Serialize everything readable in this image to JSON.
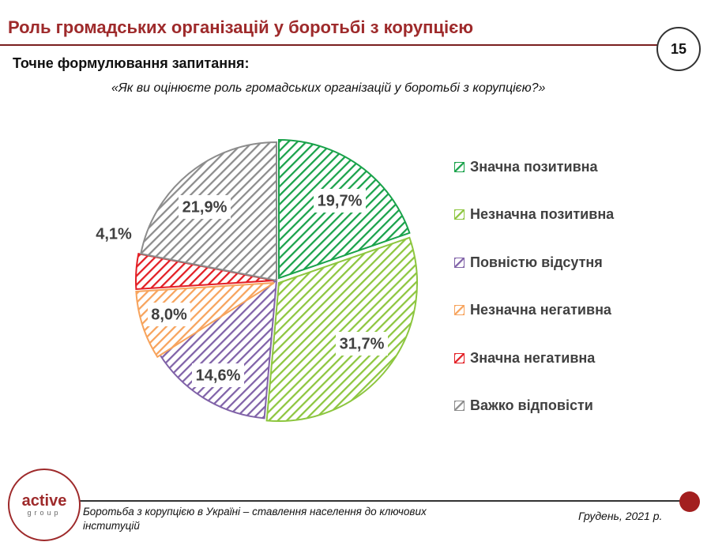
{
  "header": {
    "title": "Роль громадських організацій у боротьбі з корупцією",
    "page_number": "15"
  },
  "subtitle": "Точне формулювання запитання:",
  "question": "«Як ви оцінюєте роль громадських організацій у боротьбі з корупцією?»",
  "chart_data": {
    "type": "pie",
    "title": "",
    "categories": [
      "Значна позитивна",
      "Незначна позитивна",
      "Повністю відсутня",
      "Незначна негативна",
      "Значна негативна",
      "Важко відповісти"
    ],
    "values": [
      19.7,
      31.7,
      14.6,
      8.0,
      4.1,
      21.9
    ],
    "labels": [
      "19,7%",
      "31,7%",
      "14,6%",
      "8,0%",
      "4,1%",
      "21,9%"
    ],
    "colors": [
      "#19a24a",
      "#8dc63f",
      "#8062a8",
      "#f7a35c",
      "#e31e24",
      "#8c8c8c"
    ],
    "legend_position": "right"
  },
  "footer": {
    "logo_main": "active",
    "logo_sub": "group",
    "text": "Боротьба з корупцією в Україні – ставлення населення до ключових інституцій",
    "date": "Грудень, 2021 р."
  }
}
